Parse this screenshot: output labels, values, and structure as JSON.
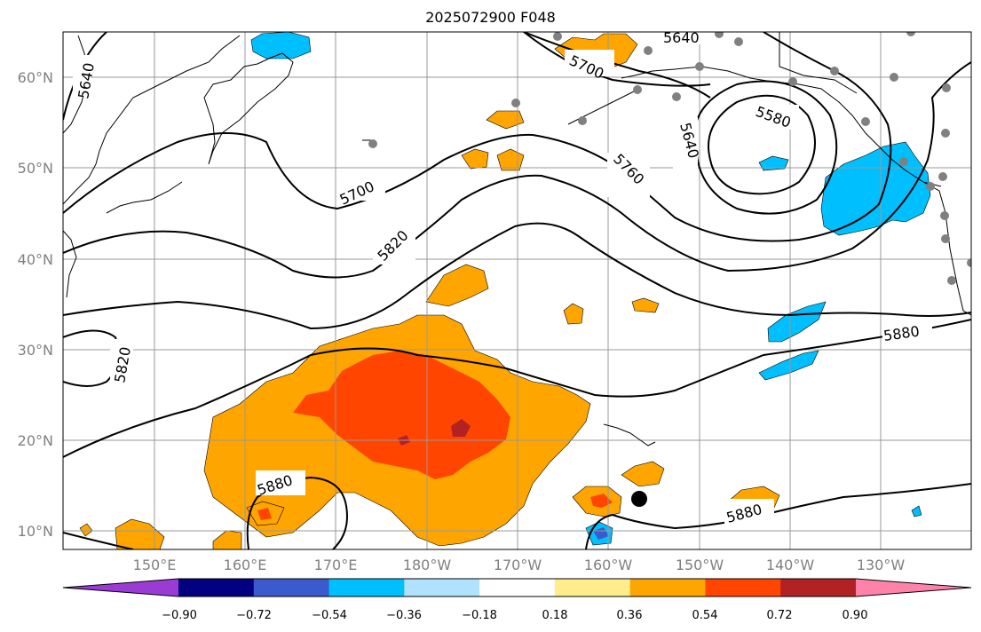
{
  "title": "2025072900 F048",
  "map": {
    "lat_labels": [
      "60°N",
      "50°N",
      "40°N",
      "30°N",
      "20°N",
      "10°N"
    ],
    "lon_labels": [
      "150°E",
      "160°E",
      "170°E",
      "180°W",
      "170°W",
      "160°W",
      "150°W",
      "140°W",
      "130°W"
    ],
    "contour_labels": [
      "5640",
      "5640",
      "5700",
      "5700",
      "5580",
      "5640",
      "5760",
      "5820",
      "5820",
      "5880",
      "5880",
      "5880"
    ]
  },
  "colorbar": {
    "tick_labels": [
      "−0.90",
      "−0.72",
      "−0.54",
      "−0.36",
      "−0.18",
      "0.18",
      "0.36",
      "0.54",
      "0.72",
      "0.90"
    ],
    "colors": [
      "#9a3bd6",
      "#000080",
      "#3a5acd",
      "#00bfff",
      "#b0e2ff",
      "#ffffff",
      "#ffec8b",
      "#ffa500",
      "#ff4500",
      "#b22222",
      "#ff82ab"
    ]
  }
}
